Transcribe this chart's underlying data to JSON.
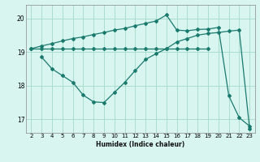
{
  "title": "",
  "xlabel": "Humidex (Indice chaleur)",
  "bg_color": "#d8f5f0",
  "grid_color": "#aaddcc",
  "line_color": "#1a7a6e",
  "xlim": [
    1.5,
    23.5
  ],
  "ylim": [
    16.6,
    20.4
  ],
  "xticks": [
    2,
    3,
    4,
    5,
    6,
    7,
    8,
    9,
    10,
    11,
    12,
    13,
    14,
    15,
    16,
    17,
    18,
    19,
    20,
    21,
    22,
    23
  ],
  "yticks": [
    17,
    18,
    19,
    20
  ],
  "line1_x": [
    2,
    3,
    4,
    5,
    6,
    7,
    8,
    9,
    10,
    11,
    12,
    13,
    14,
    15,
    16,
    17,
    18,
    19
  ],
  "line1_y": [
    19.1,
    19.1,
    19.1,
    19.1,
    19.1,
    19.1,
    19.1,
    19.1,
    19.1,
    19.1,
    19.1,
    19.1,
    19.1,
    19.1,
    19.1,
    19.1,
    19.1,
    19.1
  ],
  "line2_x": [
    2,
    3,
    4,
    5,
    6,
    7,
    8,
    9,
    10,
    11,
    12,
    13,
    14,
    15,
    16,
    17,
    18,
    19,
    20,
    21,
    22,
    23
  ],
  "line2_y": [
    19.1,
    19.18,
    19.25,
    19.33,
    19.4,
    19.45,
    19.52,
    19.58,
    19.65,
    19.7,
    19.78,
    19.85,
    19.92,
    20.1,
    19.65,
    19.63,
    19.67,
    19.68,
    19.73,
    17.7,
    17.05,
    16.8
  ],
  "line3_x": [
    3,
    4,
    5,
    6,
    7,
    8,
    9,
    10,
    11,
    12,
    13,
    14,
    15,
    16,
    17,
    18,
    19,
    20,
    21,
    22,
    23
  ],
  "line3_y": [
    18.85,
    18.5,
    18.3,
    18.1,
    17.72,
    17.52,
    17.5,
    17.8,
    18.1,
    18.45,
    18.78,
    18.95,
    19.1,
    19.3,
    19.4,
    19.5,
    19.55,
    19.58,
    19.62,
    19.65,
    16.72
  ],
  "figsize": [
    3.2,
    2.0
  ],
  "dpi": 100
}
